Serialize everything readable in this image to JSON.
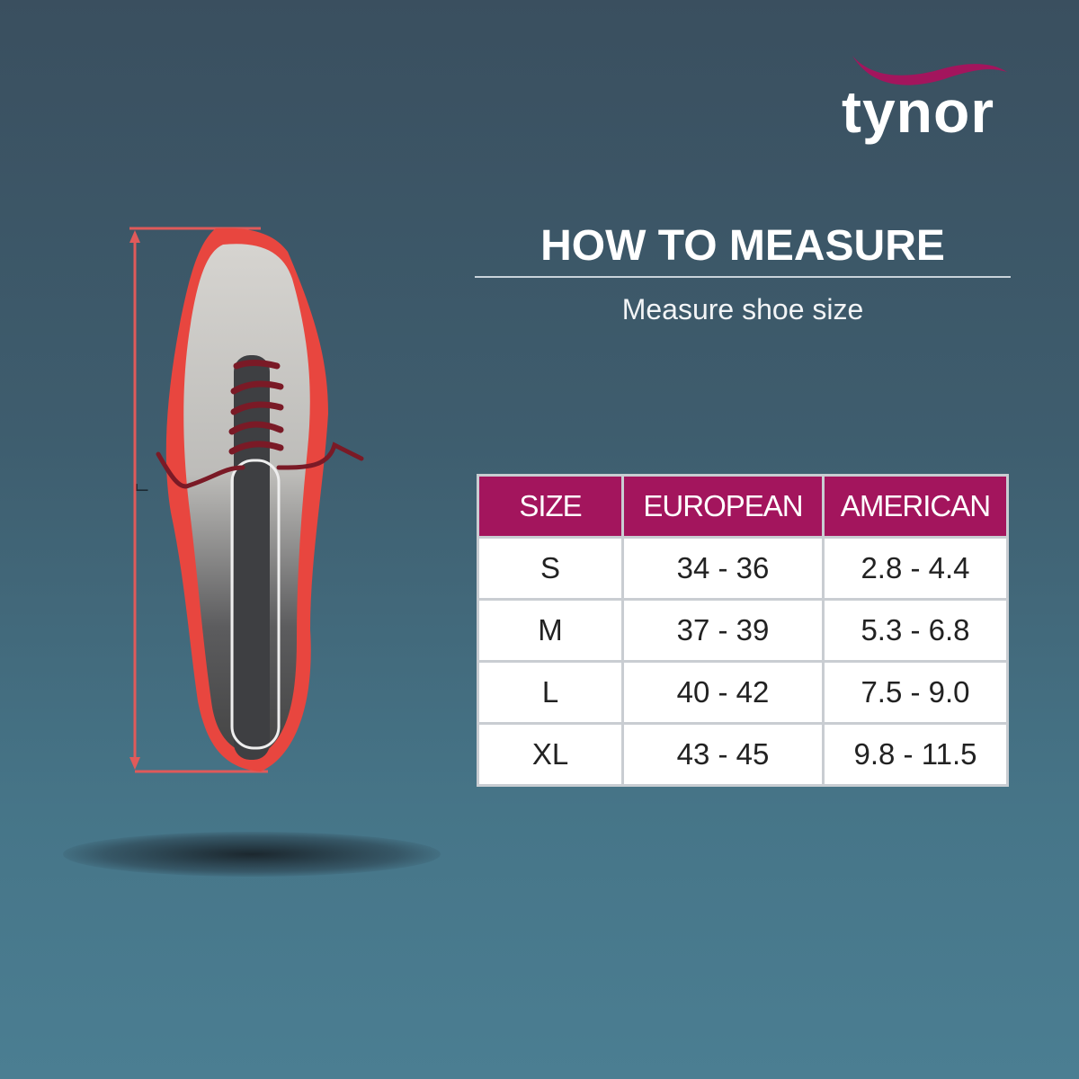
{
  "brand": {
    "name": "tynor",
    "accent": "#a3155d"
  },
  "heading": {
    "title": "HOW TO MEASURE",
    "subtitle": "Measure shoe size"
  },
  "diagram": {
    "measure_label": "L"
  },
  "size_table": {
    "headers": [
      "SIZE",
      "EUROPEAN",
      "AMERICAN"
    ],
    "rows": [
      [
        "S",
        "34 - 36",
        "2.8 - 4.4"
      ],
      [
        "M",
        "37 - 39",
        "5.3 - 6.8"
      ],
      [
        "L",
        "40 - 42",
        "7.5 - 9.0"
      ],
      [
        "XL",
        "43 - 45",
        "9.8 - 11.5"
      ]
    ]
  }
}
